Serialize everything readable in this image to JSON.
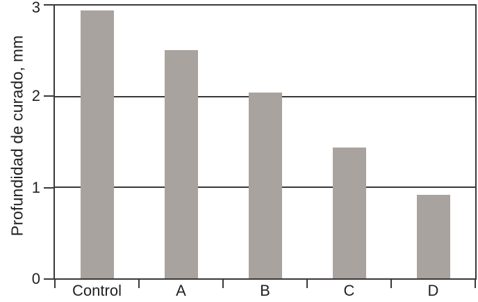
{
  "chart_data": {
    "type": "bar",
    "title": "",
    "categories": [
      "Control",
      "A",
      "B",
      "C",
      "D"
    ],
    "values": [
      2.95,
      2.51,
      2.04,
      1.44,
      0.92
    ],
    "xlabel": "",
    "ylabel": "Profundidad de curado, mm",
    "ylim": [
      0,
      3
    ],
    "yticks": [
      0,
      1,
      2,
      3
    ],
    "grid": "horizontal",
    "gridline_values": [
      1,
      2
    ],
    "legend": "none",
    "colors": {
      "bar": "#a9a39f",
      "axis": "#3a3738",
      "text": "#231f20",
      "background": "#ffffff"
    }
  }
}
